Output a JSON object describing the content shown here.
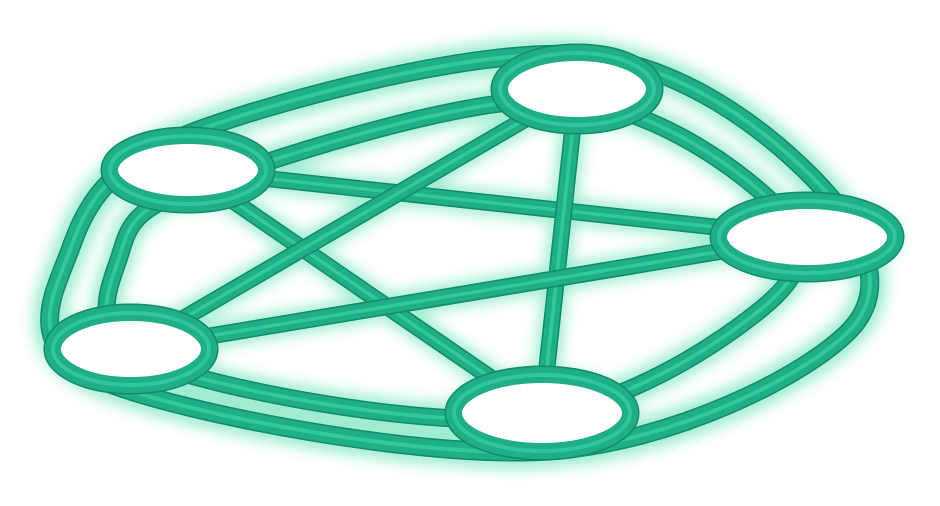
{
  "diagram": {
    "type": "network-graph",
    "style": "glossy-3d-tube",
    "colors": {
      "stroke": "#1fae86",
      "highlight": "#3fe0ac",
      "edge_shade": "#138a68",
      "glow": "#7fe6c5",
      "node_fill": "#ffffff"
    },
    "node_count": 5,
    "nodes": [
      {
        "id": "node-top"
      },
      {
        "id": "node-upper-left"
      },
      {
        "id": "node-right"
      },
      {
        "id": "node-lower-left"
      },
      {
        "id": "node-bottom"
      }
    ],
    "edges": [
      {
        "from": "node-upper-left",
        "to": "node-right",
        "kind": "star"
      },
      {
        "from": "node-upper-left",
        "to": "node-bottom",
        "kind": "star"
      },
      {
        "from": "node-top",
        "to": "node-lower-left",
        "kind": "star"
      },
      {
        "from": "node-top",
        "to": "node-bottom",
        "kind": "star"
      },
      {
        "from": "node-right",
        "to": "node-lower-left",
        "kind": "star"
      },
      {
        "from": "node-upper-left",
        "to": "node-top",
        "kind": "double-ring"
      },
      {
        "from": "node-top",
        "to": "node-right",
        "kind": "double-ring"
      },
      {
        "from": "node-right",
        "to": "node-bottom",
        "kind": "double-ring"
      },
      {
        "from": "node-bottom",
        "to": "node-lower-left",
        "kind": "double-ring"
      },
      {
        "from": "node-lower-left",
        "to": "node-upper-left",
        "kind": "double-ring"
      }
    ]
  }
}
